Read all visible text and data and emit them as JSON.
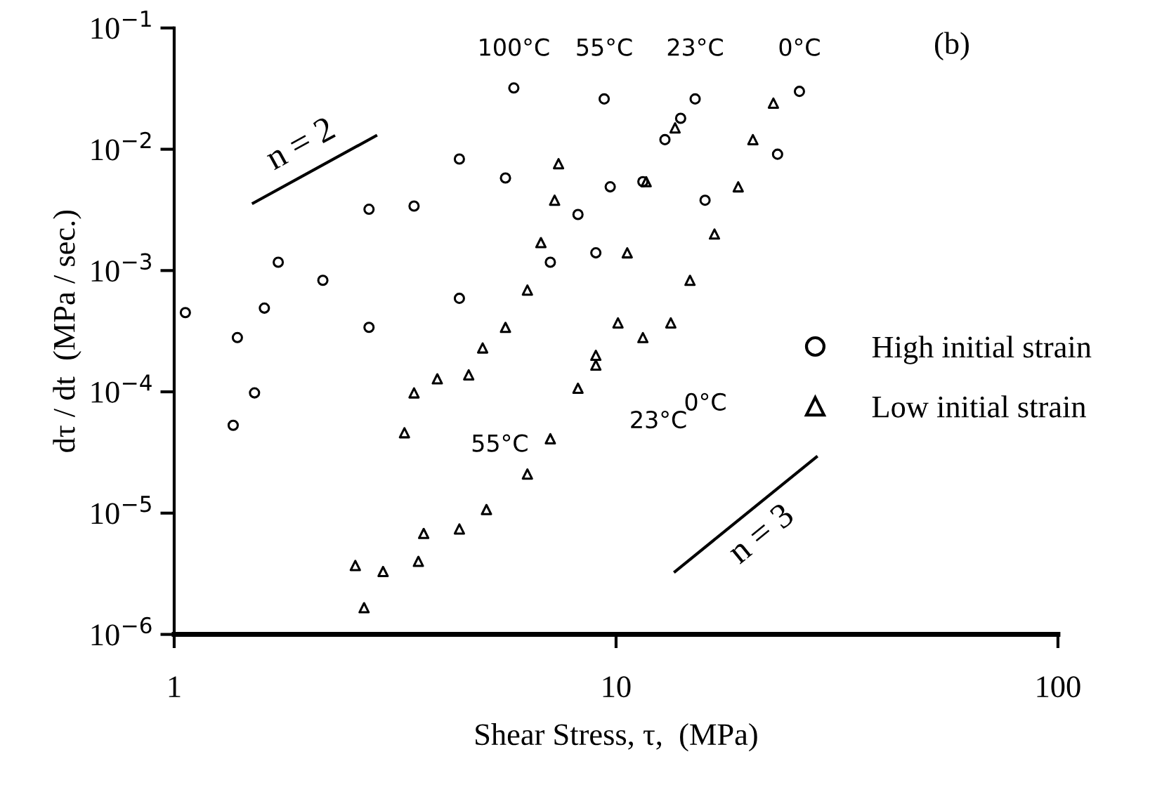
{
  "chart_data": {
    "type": "scatter",
    "xlabel": "Shear Stress, τ,  (MPa)",
    "ylabel": "dτ / dt  (MPa / sec.)",
    "log": "xy",
    "xlim": [
      1,
      100
    ],
    "ylim": [
      1e-06,
      0.1
    ],
    "xticks": [
      1,
      10,
      100
    ],
    "yticks": [
      {
        "value": 1e-06,
        "label": "10$^{−6}$"
      },
      {
        "value": 1e-05,
        "label": "10$^{−5}$"
      },
      {
        "value": 0.0001,
        "label": "10$^{−4}$"
      },
      {
        "value": 0.001,
        "label": "10$^{−3}$"
      },
      {
        "value": 0.01,
        "label": "10$^{−2}$"
      },
      {
        "value": 0.1,
        "label": "10$^{−1}$"
      }
    ],
    "grid": false,
    "legend": "right",
    "series": [
      {
        "name": "High initial strain",
        "marker": "circle",
        "color": "#000000",
        "x": [
          1.06,
          1.72,
          2.76,
          4.42,
          5.87
        ],
        "values": [
          0.00045,
          0.00117,
          0.0032,
          0.0083,
          0.032
        ]
      },
      {
        "marker": "circle",
        "color": "#000000",
        "x": [
          1.39,
          1.6,
          2.17,
          3.49,
          5.62,
          9.4
        ],
        "values": [
          0.00028,
          0.00049,
          0.00083,
          0.0034,
          0.0058,
          0.026
        ]
      },
      {
        "marker": "circle",
        "color": "#000000",
        "x": [
          8.2,
          9.7,
          11.5,
          12.9,
          14,
          15.1
        ],
        "values": [
          0.0029,
          0.0049,
          0.0054,
          0.012,
          0.018,
          0.026
        ]
      },
      {
        "marker": "circle",
        "color": "#000000",
        "x": [
          1.36,
          1.52,
          2.76,
          4.42,
          7.1,
          9.0,
          15.9,
          23.2,
          26
        ],
        "values": [
          5.3e-05,
          9.8e-05,
          0.00034,
          0.00059,
          0.00117,
          0.0014,
          0.0038,
          0.0091,
          0.03
        ]
      },
      {
        "name": "Low initial strain",
        "marker": "triangle",
        "color": "#000000",
        "x": [
          3.32,
          3.49,
          3.94,
          4.64,
          4.99,
          5.62,
          6.3,
          6.76,
          7.26,
          7.41
        ],
        "values": [
          4.6e-05,
          9.8e-05,
          0.000128,
          0.000138,
          0.00023,
          0.00034,
          0.00069,
          0.0017,
          0.0038,
          0.0076
        ]
      },
      {
        "marker": "triangle",
        "color": "#000000",
        "x": [
          2.57,
          2.69,
          2.97,
          3.57,
          3.67,
          4.42,
          5.09,
          6.3,
          7.1,
          8.2,
          9.0,
          10.1,
          10.6,
          11.7,
          13.6
        ],
        "values": [
          3.7e-06,
          1.66e-06,
          3.3e-06,
          4e-06,
          6.8e-06,
          7.4e-06,
          1.07e-05,
          2.1e-05,
          4.1e-05,
          0.000107,
          0.0002,
          0.00037,
          0.0014,
          0.0054,
          0.015
        ]
      },
      {
        "marker": "triangle",
        "color": "#000000",
        "x": [
          9.0,
          11.5,
          13.3,
          14.7,
          16.7,
          18.9,
          20.4,
          22.7
        ],
        "values": [
          0.000166,
          0.00028,
          0.00037,
          0.00083,
          0.002,
          0.0049,
          0.012,
          0.024
        ]
      },
      {
        "type": "line",
        "color": "#000000",
        "x": [
          1.51,
          2.86
        ],
        "values": [
          0.0036,
          0.0129
        ]
      },
      {
        "type": "line",
        "color": "#000000",
        "x": [
          13.6,
          28.4
        ],
        "values": [
          3.3e-06,
          2.9e-05
        ]
      }
    ],
    "annotations": [
      {
        "text": "100°C",
        "x": 5.87,
        "y": 0.032
      },
      {
        "text": "55°C",
        "x": 9.4,
        "y": 0.026
      },
      {
        "text": "23°C",
        "x": 15.1,
        "y": 0.026
      },
      {
        "text": "0°C",
        "x": 26,
        "y": 0.03
      },
      {
        "text": "55°C",
        "x": 3.94,
        "y": 0.000128
      },
      {
        "text": "23°C",
        "x": 9.0,
        "y": 0.0002
      },
      {
        "text": "0°C",
        "x": 11.5,
        "y": 0.00028
      },
      {
        "text": "n = 2",
        "x": 2.08,
        "y": 0.0068
      },
      {
        "text": "n = 3",
        "x": 19.6,
        "y": 9.8e-06
      },
      "(b)"
    ]
  }
}
